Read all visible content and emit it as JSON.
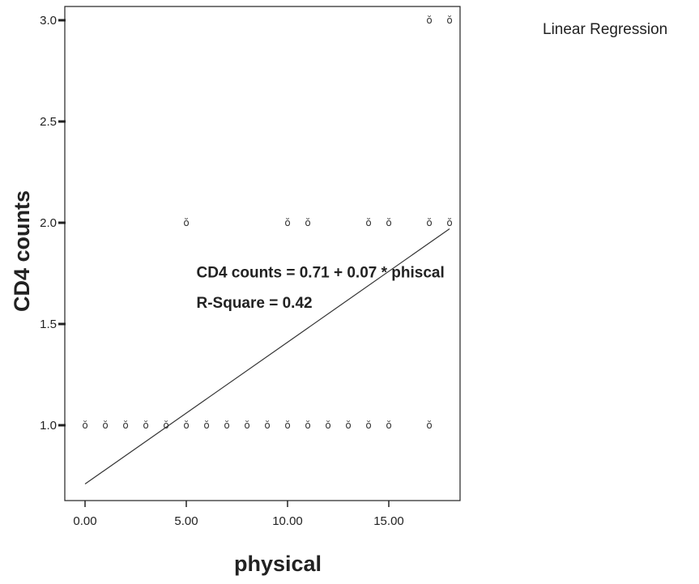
{
  "chart_data": {
    "type": "scatter",
    "title": "",
    "legend_title": "Linear Regression",
    "xlabel": "physical",
    "ylabel": "CD4 counts",
    "xlim": [
      -1,
      18.5
    ],
    "ylim": [
      0.6,
      3.05
    ],
    "x_ticks": [
      {
        "value": 0,
        "label": "0.00"
      },
      {
        "value": 5,
        "label": "5.00"
      },
      {
        "value": 10,
        "label": "10.00"
      },
      {
        "value": 15,
        "label": "15.00"
      }
    ],
    "y_ticks": [
      {
        "value": 1.0,
        "label": "1.0"
      },
      {
        "value": 1.5,
        "label": "1.5"
      },
      {
        "value": 2.0,
        "label": "2.0"
      },
      {
        "value": 2.5,
        "label": "2.5"
      },
      {
        "value": 3.0,
        "label": "3.0"
      }
    ],
    "grid": false,
    "points": [
      {
        "x": 0,
        "y": 1
      },
      {
        "x": 1,
        "y": 1
      },
      {
        "x": 2,
        "y": 1
      },
      {
        "x": 3,
        "y": 1
      },
      {
        "x": 4,
        "y": 1
      },
      {
        "x": 5,
        "y": 1
      },
      {
        "x": 6,
        "y": 1
      },
      {
        "x": 7,
        "y": 1
      },
      {
        "x": 8,
        "y": 1
      },
      {
        "x": 9,
        "y": 1
      },
      {
        "x": 10,
        "y": 1
      },
      {
        "x": 11,
        "y": 1
      },
      {
        "x": 12,
        "y": 1
      },
      {
        "x": 13,
        "y": 1
      },
      {
        "x": 14,
        "y": 1
      },
      {
        "x": 15,
        "y": 1
      },
      {
        "x": 17,
        "y": 1
      },
      {
        "x": 5,
        "y": 2
      },
      {
        "x": 10,
        "y": 2
      },
      {
        "x": 11,
        "y": 2
      },
      {
        "x": 14,
        "y": 2
      },
      {
        "x": 15,
        "y": 2
      },
      {
        "x": 17,
        "y": 2
      },
      {
        "x": 18,
        "y": 2
      },
      {
        "x": 17,
        "y": 3
      },
      {
        "x": 18,
        "y": 3
      }
    ],
    "marker_symbol": "ŏ",
    "fit_line": {
      "intercept": 0.71,
      "slope": 0.07,
      "x_start": 0,
      "x_end": 18
    },
    "annotations": [
      {
        "text": "CD4 counts = 0.71 + 0.07 * phiscal",
        "x": 5.3,
        "y": 1.75
      },
      {
        "text": "R-Square = 0.42",
        "x": 5.3,
        "y": 1.6
      }
    ],
    "colors": {
      "line": "#333333",
      "markers": "#333333",
      "axis": "#222222"
    }
  }
}
